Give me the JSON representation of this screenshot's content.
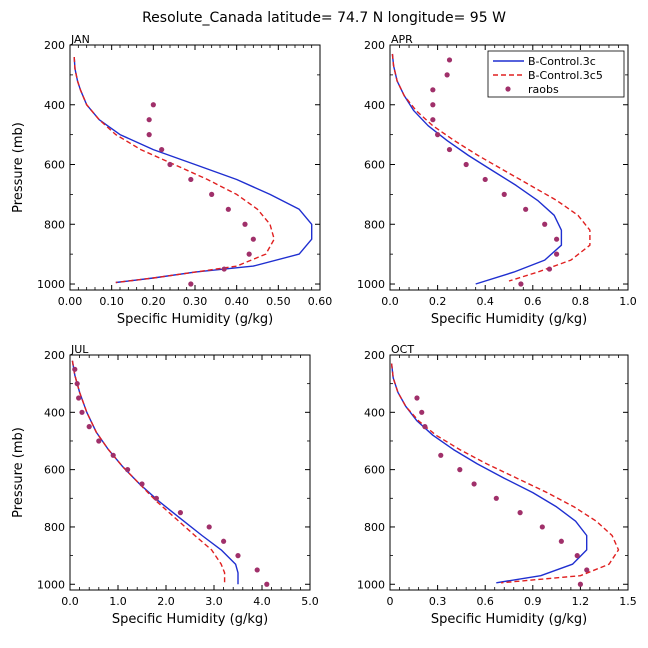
{
  "figure": {
    "title": "Resolute_Canada   latitude= 74.7 N longitude= 95 W"
  },
  "legend": {
    "entries": [
      {
        "label": "B-Control.3c",
        "style": "solid-line",
        "color": "#1f2fd0"
      },
      {
        "label": "B-Control.3c5",
        "style": "dashed-line",
        "color": "#e02020"
      },
      {
        "label": "raobs",
        "style": "marker",
        "color": "#a0306a"
      }
    ]
  },
  "colors": {
    "control3c": "#1f2fd0",
    "control3c5": "#e02020",
    "raobs": "#a0306a"
  },
  "chart_data": [
    {
      "type": "line",
      "title": "JAN",
      "xlabel": "Specific Humidity (g/kg)",
      "ylabel": "Pressure (mb)",
      "xlim": [
        0,
        0.6
      ],
      "ylim": [
        200,
        1020
      ],
      "y_inverted": true,
      "xticks": [
        0,
        0.1,
        0.2,
        0.3,
        0.4,
        0.5,
        0.6
      ],
      "xtick_labels": [
        "0.00",
        "0.10",
        "0.20",
        "0.30",
        "0.40",
        "0.50",
        "0.60"
      ],
      "yticks": [
        200,
        400,
        600,
        800,
        1000
      ],
      "ytick_labels": [
        "200",
        "400",
        "600",
        "800",
        "1000"
      ],
      "series": [
        {
          "name": "B-Control.3c",
          "style": "solid",
          "x": [
            0.01,
            0.012,
            0.018,
            0.025,
            0.04,
            0.07,
            0.12,
            0.2,
            0.3,
            0.4,
            0.48,
            0.55,
            0.58,
            0.58,
            0.55,
            0.44,
            0.3,
            0.2,
            0.11
          ],
          "y": [
            240,
            280,
            320,
            350,
            400,
            450,
            500,
            550,
            600,
            650,
            700,
            750,
            800,
            850,
            900,
            940,
            960,
            980,
            995
          ]
        },
        {
          "name": "B-Control.3c5",
          "style": "dashed",
          "x": [
            0.01,
            0.012,
            0.018,
            0.025,
            0.04,
            0.07,
            0.11,
            0.17,
            0.25,
            0.33,
            0.4,
            0.45,
            0.48,
            0.49,
            0.47,
            0.4,
            0.3,
            0.2,
            0.11
          ],
          "y": [
            240,
            280,
            320,
            350,
            400,
            450,
            500,
            550,
            600,
            650,
            700,
            750,
            800,
            850,
            900,
            940,
            960,
            980,
            995
          ]
        },
        {
          "name": "raobs",
          "style": "markers",
          "x": [
            0.2,
            0.19,
            0.19,
            0.22,
            0.24,
            0.29,
            0.34,
            0.38,
            0.42,
            0.44,
            0.43,
            0.37,
            0.29
          ],
          "y": [
            400,
            450,
            500,
            550,
            600,
            650,
            700,
            750,
            800,
            850,
            900,
            950,
            1000
          ]
        }
      ]
    },
    {
      "type": "line",
      "title": "APR",
      "xlabel": "Specific Humidity (g/kg)",
      "ylabel": "",
      "xlim": [
        0,
        1.0
      ],
      "ylim": [
        200,
        1020
      ],
      "y_inverted": true,
      "xticks": [
        0,
        0.2,
        0.4,
        0.6,
        0.8,
        1.0
      ],
      "xtick_labels": [
        "0.0",
        "0.2",
        "0.4",
        "0.6",
        "0.8",
        "1.0"
      ],
      "yticks": [
        200,
        400,
        600,
        800,
        1000
      ],
      "ytick_labels": [
        "200",
        "400",
        "600",
        "800",
        "1000"
      ],
      "series": [
        {
          "name": "B-Control.3c",
          "style": "solid",
          "x": [
            0.01,
            0.015,
            0.03,
            0.06,
            0.1,
            0.16,
            0.24,
            0.33,
            0.43,
            0.53,
            0.62,
            0.69,
            0.72,
            0.72,
            0.65,
            0.52,
            0.36
          ],
          "y": [
            230,
            270,
            320,
            370,
            420,
            470,
            520,
            570,
            620,
            670,
            720,
            770,
            820,
            870,
            920,
            960,
            1000
          ]
        },
        {
          "name": "B-Control.3c5",
          "style": "dashed",
          "x": [
            0.01,
            0.015,
            0.03,
            0.06,
            0.11,
            0.18,
            0.27,
            0.37,
            0.48,
            0.59,
            0.7,
            0.79,
            0.84,
            0.84,
            0.76,
            0.62,
            0.5
          ],
          "y": [
            230,
            270,
            320,
            370,
            420,
            470,
            520,
            570,
            620,
            670,
            720,
            770,
            820,
            870,
            920,
            960,
            990
          ]
        },
        {
          "name": "raobs",
          "style": "markers",
          "x": [
            0.25,
            0.24,
            0.18,
            0.18,
            0.18,
            0.2,
            0.25,
            0.32,
            0.4,
            0.48,
            0.57,
            0.65,
            0.7,
            0.7,
            0.67,
            0.55
          ],
          "y": [
            250,
            300,
            350,
            400,
            450,
            500,
            550,
            600,
            650,
            700,
            750,
            800,
            850,
            900,
            950,
            1000
          ]
        }
      ]
    },
    {
      "type": "line",
      "title": "JUL",
      "xlabel": "Specific Humidity (g/kg)",
      "ylabel": "Pressure (mb)",
      "xlim": [
        0,
        5.0
      ],
      "ylim": [
        200,
        1020
      ],
      "y_inverted": true,
      "xticks": [
        0,
        1,
        2,
        3,
        4,
        5
      ],
      "xtick_labels": [
        "0.0",
        "1.0",
        "2.0",
        "3.0",
        "4.0",
        "5.0"
      ],
      "yticks": [
        200,
        400,
        600,
        800,
        1000
      ],
      "ytick_labels": [
        "200",
        "400",
        "600",
        "800",
        "1000"
      ],
      "series": [
        {
          "name": "B-Control.3c",
          "style": "solid",
          "x": [
            0.05,
            0.1,
            0.2,
            0.35,
            0.55,
            0.8,
            1.1,
            1.45,
            1.85,
            2.3,
            2.75,
            3.15,
            3.45,
            3.5,
            3.5
          ],
          "y": [
            220,
            270,
            330,
            400,
            470,
            530,
            590,
            650,
            710,
            770,
            830,
            880,
            930,
            960,
            1000
          ]
        },
        {
          "name": "B-Control.3c5",
          "style": "dashed",
          "x": [
            0.05,
            0.1,
            0.2,
            0.35,
            0.55,
            0.8,
            1.1,
            1.45,
            1.8,
            2.2,
            2.6,
            2.95,
            3.15,
            3.22,
            3.22
          ],
          "y": [
            220,
            270,
            330,
            400,
            470,
            530,
            590,
            650,
            710,
            770,
            830,
            880,
            930,
            960,
            1000
          ]
        },
        {
          "name": "raobs",
          "style": "markers",
          "x": [
            0.1,
            0.15,
            0.18,
            0.25,
            0.4,
            0.6,
            0.9,
            1.2,
            1.5,
            1.8,
            2.3,
            2.9,
            3.2,
            3.5,
            3.9,
            4.1
          ],
          "y": [
            250,
            300,
            350,
            400,
            450,
            500,
            550,
            600,
            650,
            700,
            750,
            800,
            850,
            900,
            950,
            1000
          ]
        }
      ]
    },
    {
      "type": "line",
      "title": "OCT",
      "xlabel": "Specific Humidity (g/kg)",
      "ylabel": "",
      "xlim": [
        0,
        1.5
      ],
      "ylim": [
        200,
        1020
      ],
      "y_inverted": true,
      "xticks": [
        0,
        0.3,
        0.6,
        0.9,
        1.2,
        1.5
      ],
      "xtick_labels": [
        "0",
        "0.3",
        "0.6",
        "0.9",
        "1.2",
        "1.5"
      ],
      "yticks": [
        200,
        400,
        600,
        800,
        1000
      ],
      "ytick_labels": [
        "200",
        "400",
        "600",
        "800",
        "1000"
      ],
      "series": [
        {
          "name": "B-Control.3c",
          "style": "solid",
          "x": [
            0.01,
            0.02,
            0.05,
            0.1,
            0.17,
            0.27,
            0.4,
            0.55,
            0.72,
            0.9,
            1.05,
            1.17,
            1.24,
            1.24,
            1.15,
            0.95,
            0.67
          ],
          "y": [
            230,
            280,
            330,
            380,
            430,
            480,
            530,
            580,
            630,
            680,
            730,
            780,
            830,
            880,
            930,
            970,
            995
          ]
        },
        {
          "name": "B-Control.3c5",
          "style": "dashed",
          "x": [
            0.01,
            0.02,
            0.05,
            0.1,
            0.18,
            0.29,
            0.44,
            0.61,
            0.8,
            0.99,
            1.16,
            1.3,
            1.4,
            1.44,
            1.38,
            1.2,
            0.7
          ],
          "y": [
            230,
            280,
            330,
            380,
            430,
            480,
            530,
            580,
            630,
            680,
            730,
            780,
            830,
            880,
            930,
            970,
            995
          ]
        },
        {
          "name": "raobs",
          "style": "markers",
          "x": [
            0.17,
            0.2,
            0.22,
            0.32,
            0.44,
            0.53,
            0.67,
            0.82,
            0.96,
            1.08,
            1.18,
            1.24,
            1.2
          ],
          "y": [
            350,
            400,
            450,
            550,
            600,
            650,
            700,
            750,
            800,
            850,
            900,
            950,
            1000
          ]
        }
      ]
    }
  ]
}
